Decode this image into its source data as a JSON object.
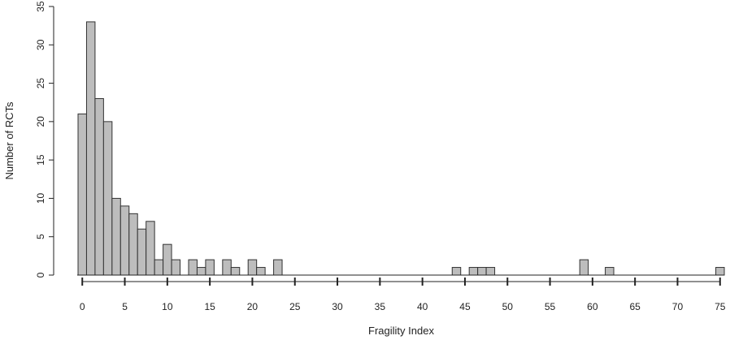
{
  "chart_data": {
    "type": "bar",
    "title": "",
    "xlabel": "Fragility Index",
    "ylabel": "Number of RCTs",
    "bin_width": 1,
    "xlim": [
      0,
      75
    ],
    "ylim": [
      0,
      35
    ],
    "x_ticks": [
      0,
      5,
      10,
      15,
      20,
      25,
      30,
      35,
      40,
      45,
      50,
      55,
      60,
      65,
      70,
      75
    ],
    "y_ticks": [
      0,
      5,
      10,
      15,
      20,
      25,
      30,
      35
    ],
    "grid": false,
    "bar_color": "#bdbdbd",
    "edge_color": "#333333",
    "bins": [
      {
        "x": 0,
        "count": 21
      },
      {
        "x": 1,
        "count": 33
      },
      {
        "x": 2,
        "count": 23
      },
      {
        "x": 3,
        "count": 20
      },
      {
        "x": 4,
        "count": 10
      },
      {
        "x": 5,
        "count": 9
      },
      {
        "x": 6,
        "count": 8
      },
      {
        "x": 7,
        "count": 6
      },
      {
        "x": 8,
        "count": 7
      },
      {
        "x": 9,
        "count": 2
      },
      {
        "x": 10,
        "count": 4
      },
      {
        "x": 11,
        "count": 2
      },
      {
        "x": 13,
        "count": 2
      },
      {
        "x": 14,
        "count": 1
      },
      {
        "x": 15,
        "count": 2
      },
      {
        "x": 17,
        "count": 2
      },
      {
        "x": 18,
        "count": 1
      },
      {
        "x": 20,
        "count": 2
      },
      {
        "x": 21,
        "count": 1
      },
      {
        "x": 23,
        "count": 2
      },
      {
        "x": 44,
        "count": 1
      },
      {
        "x": 46,
        "count": 1
      },
      {
        "x": 47,
        "count": 1
      },
      {
        "x": 48,
        "count": 1
      },
      {
        "x": 59,
        "count": 2
      },
      {
        "x": 62,
        "count": 1
      },
      {
        "x": 75,
        "count": 1
      }
    ]
  }
}
